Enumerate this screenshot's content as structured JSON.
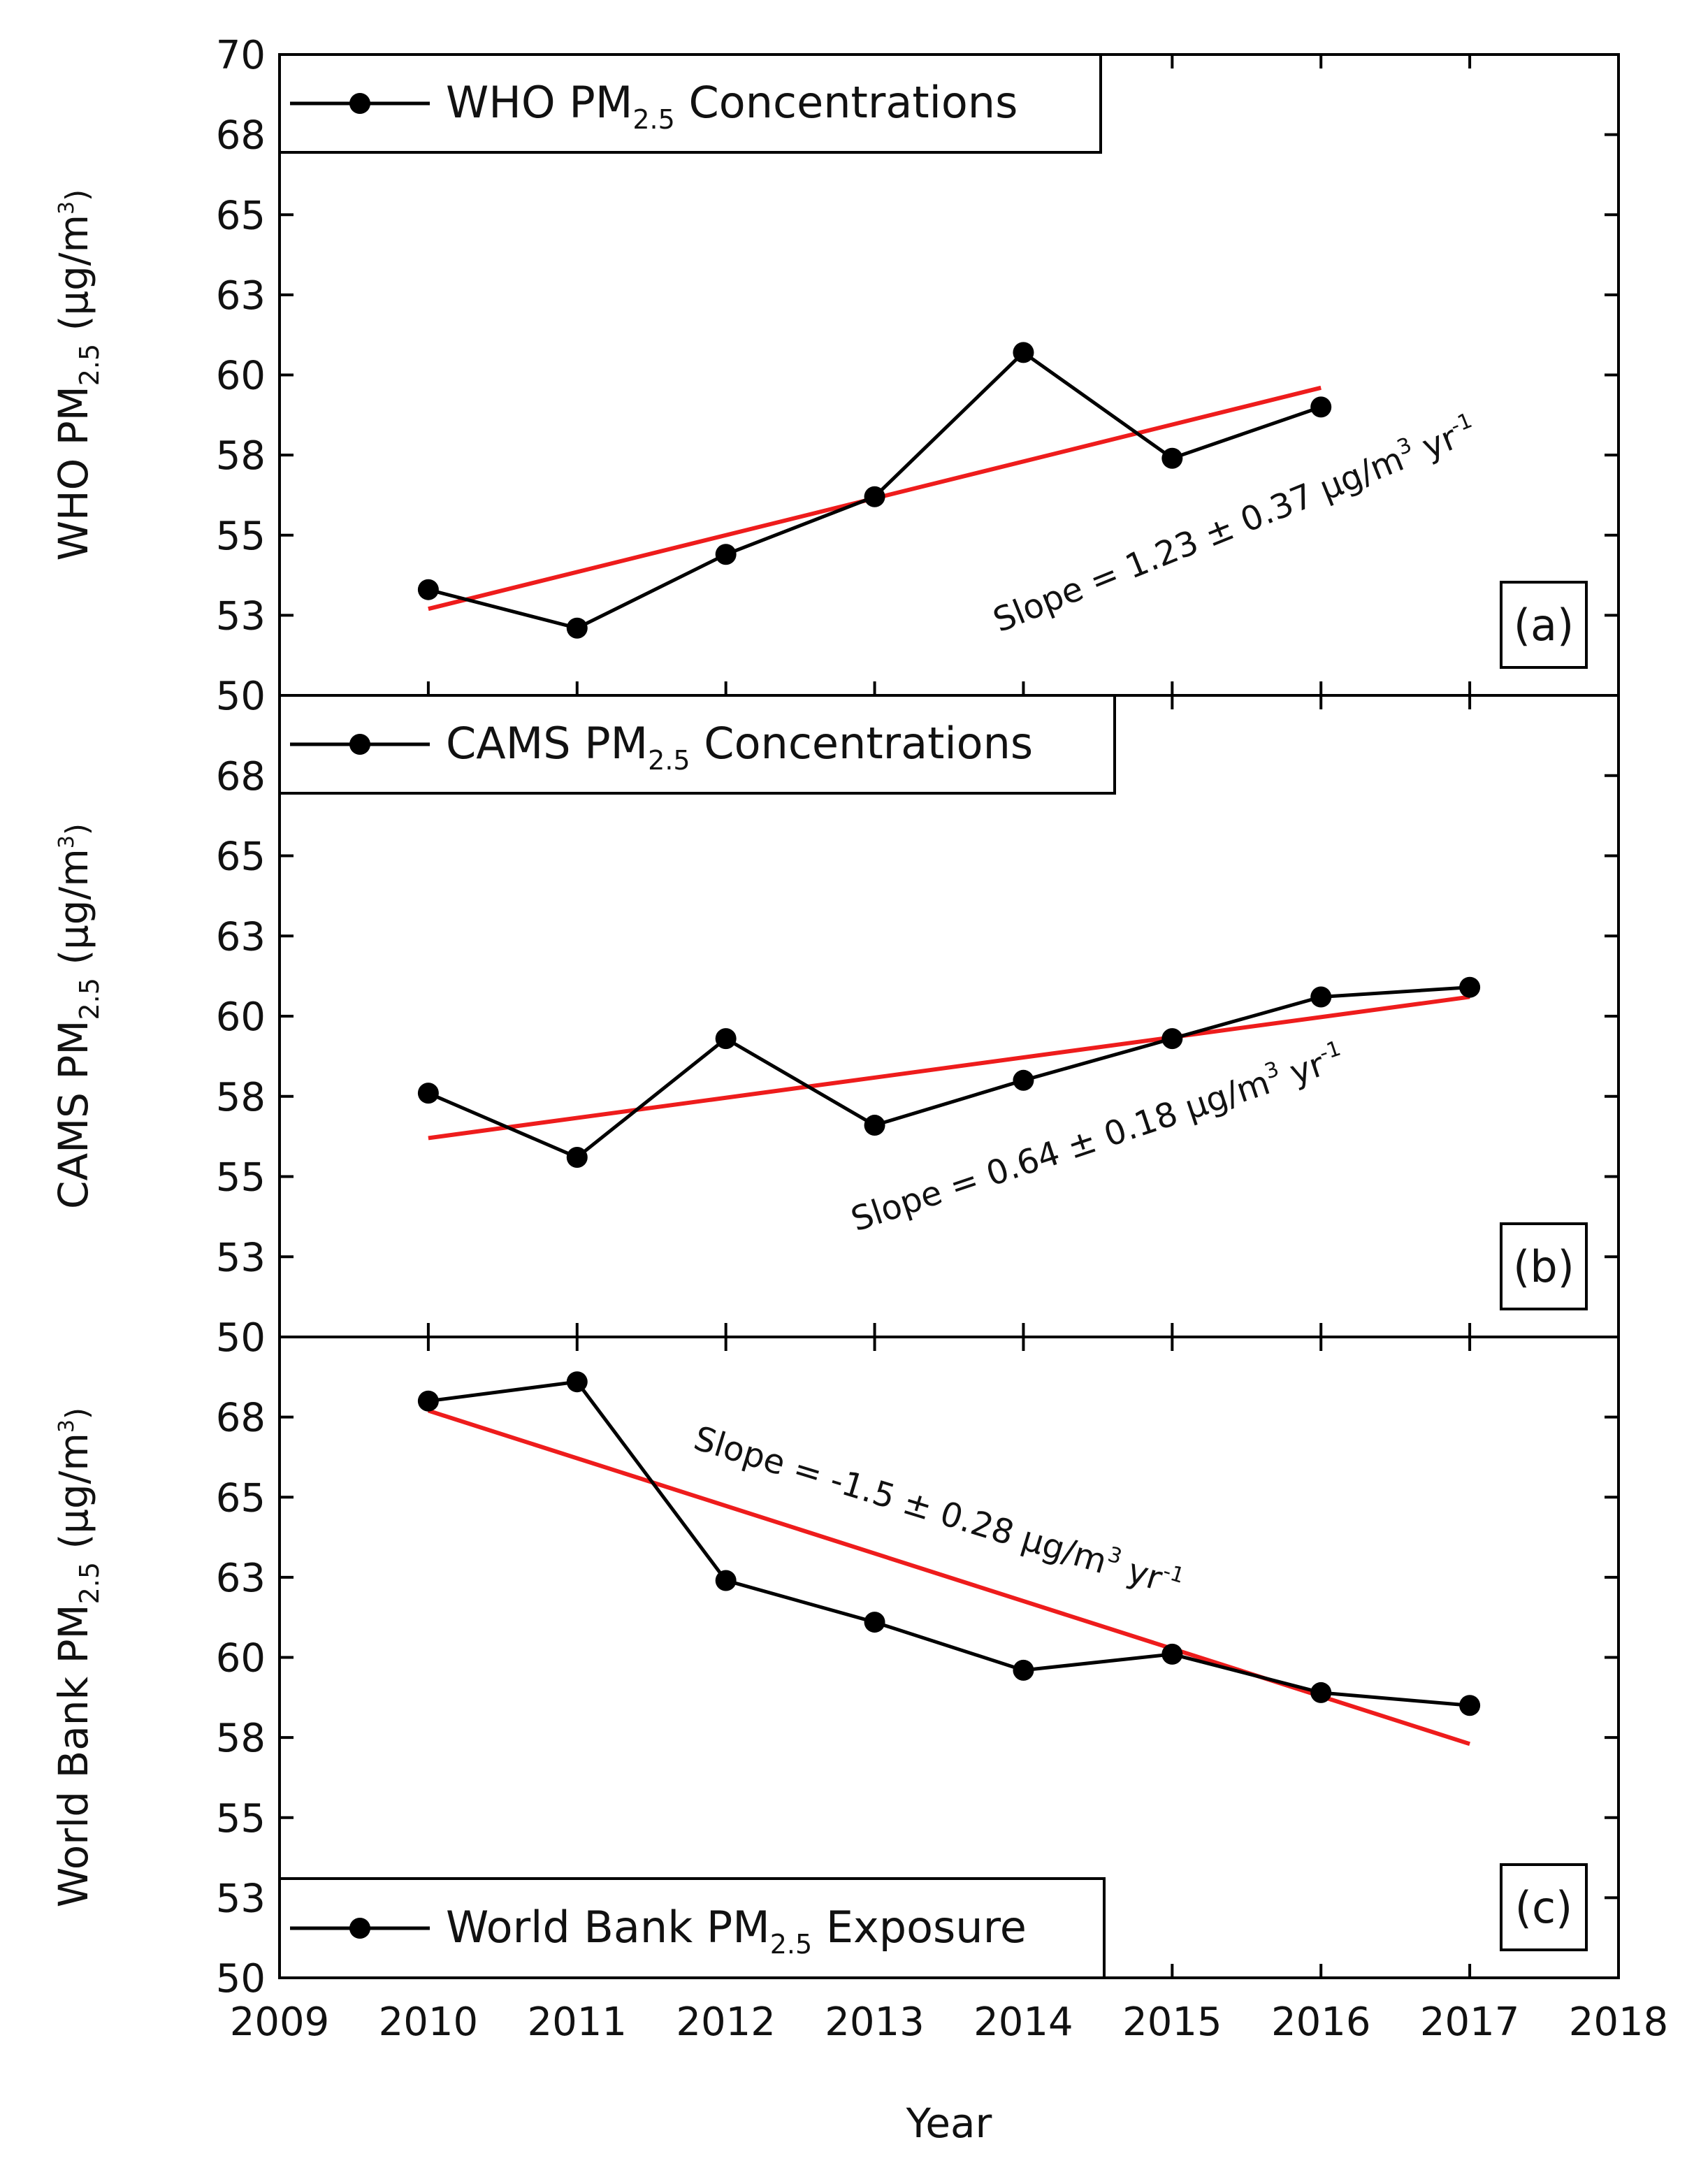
{
  "chart_data": {
    "type": "line",
    "xlabel": "Year",
    "xlim": [
      2009,
      2018
    ],
    "x_ticks": [
      2009,
      2010,
      2011,
      2012,
      2013,
      2014,
      2015,
      2016,
      2017,
      2018
    ],
    "ylim": [
      50,
      70
    ],
    "y_tick_values": [
      50,
      52.5,
      55,
      57.5,
      60,
      62.5,
      65,
      67.5,
      70
    ],
    "y_tick_labels": [
      "50",
      "53",
      "55",
      "58",
      "60",
      "63",
      "65",
      "68",
      "70"
    ],
    "y_unit": "(μg/m",
    "y_unit_sup": "3",
    "pm_sub": "2.5",
    "panels": [
      {
        "id": "a",
        "tag": "(a)",
        "ylabel": "WHO PM",
        "legend_prefix": "WHO PM",
        "legend_suffix": " Concentrations",
        "legend_position": "top-left",
        "series": {
          "name": "WHO PM2.5 Concentrations",
          "x": [
            2010,
            2011,
            2012,
            2013,
            2014,
            2015,
            2016
          ],
          "y": [
            53.3,
            52.1,
            54.4,
            56.2,
            60.7,
            57.4,
            59.0
          ]
        },
        "fit": {
          "x": [
            2010,
            2016
          ],
          "y": [
            52.7,
            59.6
          ]
        },
        "slope_text": "Slope =  1.23 ± 0.37 μg/m",
        "slope_sup": "3",
        "slope_unit": " yr",
        "slope_exp": "-1",
        "show_top_tick_label": true
      },
      {
        "id": "b",
        "tag": "(b)",
        "ylabel": "CAMS PM",
        "legend_prefix": "CAMS PM",
        "legend_suffix": " Concentrations",
        "legend_position": "top-left",
        "series": {
          "name": "CAMS PM2.5 Concentrations",
          "x": [
            2010,
            2011,
            2012,
            2013,
            2014,
            2015,
            2016,
            2017
          ],
          "y": [
            57.6,
            55.6,
            59.3,
            56.6,
            58.0,
            59.3,
            60.6,
            60.9
          ]
        },
        "fit": {
          "x": [
            2010,
            2017
          ],
          "y": [
            56.2,
            60.6
          ]
        },
        "slope_text": "Slope =  0.64 ± 0.18 μg/m",
        "slope_sup": "3",
        "slope_unit": " yr",
        "slope_exp": "-1",
        "show_top_tick_label": false
      },
      {
        "id": "c",
        "tag": "(c)",
        "ylabel": "World Bank PM",
        "legend_prefix": "World Bank PM",
        "legend_suffix": " Exposure",
        "legend_position": "bottom-left",
        "series": {
          "name": "World Bank PM2.5 Exposure",
          "x": [
            2010,
            2011,
            2012,
            2013,
            2014,
            2015,
            2016,
            2017
          ],
          "y": [
            68.0,
            68.6,
            62.4,
            61.1,
            59.6,
            60.1,
            58.9,
            58.5
          ]
        },
        "fit": {
          "x": [
            2010,
            2017
          ],
          "y": [
            67.7,
            57.3
          ]
        },
        "slope_text": "Slope =  -1.5 ± 0.28 μg/m",
        "slope_sup": "3",
        "slope_unit": " yr",
        "slope_exp": "-1",
        "show_top_tick_label": false
      }
    ],
    "colors": {
      "data": "#000000",
      "fit": "#ee1c1c",
      "frame": "#000000"
    }
  }
}
